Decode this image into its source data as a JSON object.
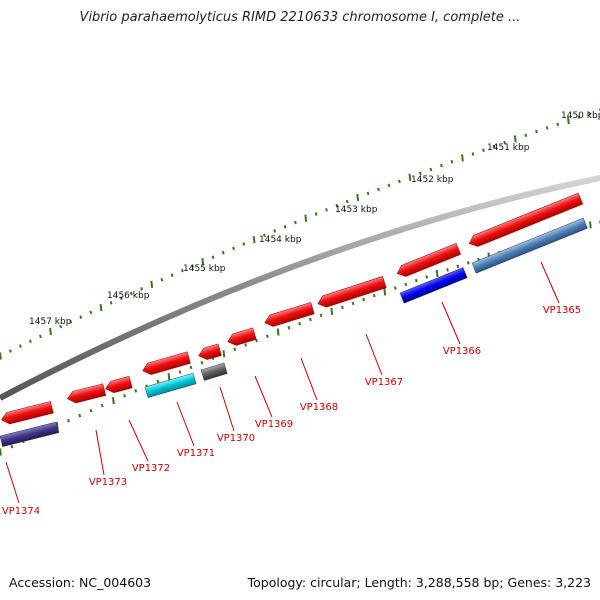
{
  "title": "Vibrio parahaemolyticus RIMD 2210633 chromosome I, complete ...",
  "ruler_ticks": [
    {
      "label": "1450 kbp"
    },
    {
      "label": "1451 kbp"
    },
    {
      "label": "1452 kbp"
    },
    {
      "label": "1453 kbp"
    },
    {
      "label": "1454 kbp"
    },
    {
      "label": "1455 kbp"
    },
    {
      "label": "1456 kbp"
    },
    {
      "label": "1457 kbp"
    }
  ],
  "genes": [
    {
      "label": "VP1365",
      "color": "#4a7db4"
    },
    {
      "label": "VP1366",
      "color": "#0000dd"
    },
    {
      "label": "VP1367",
      "color": "#dd0000"
    },
    {
      "label": "VP1368",
      "color": "#dd0000"
    },
    {
      "label": "VP1369",
      "color": "#dd0000"
    },
    {
      "label": "VP1370",
      "color": "#555555"
    },
    {
      "label": "VP1371",
      "color": "#00b8c8"
    },
    {
      "label": "VP1372",
      "color": "#dd0000"
    },
    {
      "label": "VP1373",
      "color": "#dd0000"
    },
    {
      "label": "VP1374",
      "color": "#3a2f7e"
    }
  ],
  "colors": {
    "backbone": "#8a8a8a",
    "tick": "#2e7d12",
    "label": "#cc0000"
  },
  "footer": {
    "accession": "Accession: NC_004603",
    "summary": "Topology: circular; Length: 3,288,558 bp; Genes: 3,223"
  }
}
